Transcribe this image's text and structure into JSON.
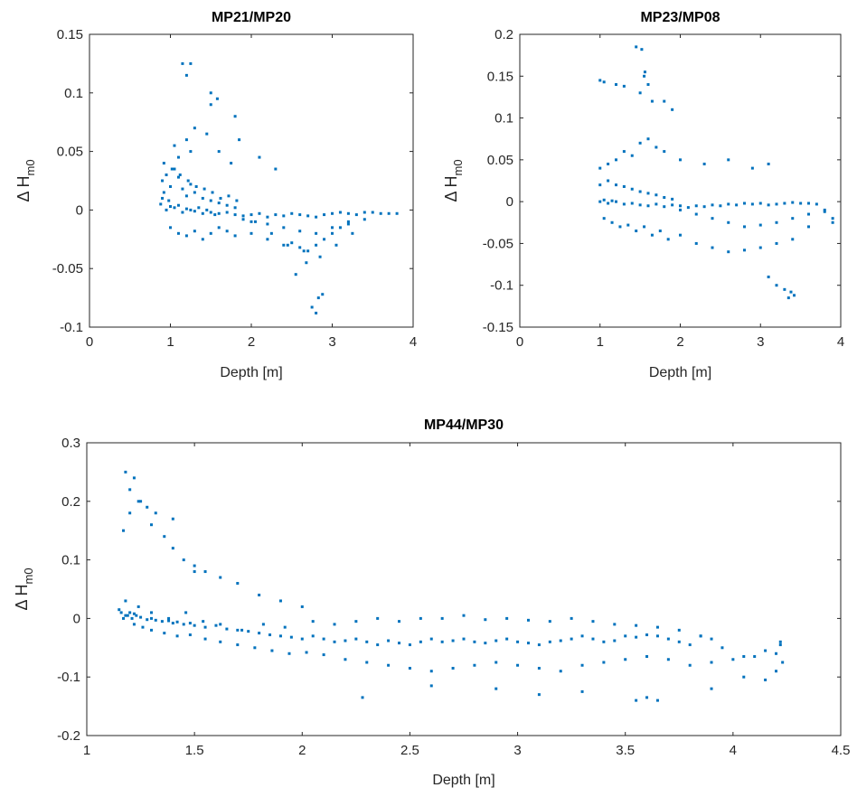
{
  "chart_data": [
    {
      "type": "scatter",
      "title": "MP21/MP20",
      "xlabel": "Depth [m]",
      "ylabel": {
        "main": "Δ H",
        "sub": "m0"
      },
      "xlim": [
        0,
        4
      ],
      "ylim": [
        -0.1,
        0.15
      ],
      "xticks": [
        "0",
        "1",
        "2",
        "3",
        "4"
      ],
      "yticks": [
        "-0.1",
        "-0.05",
        "0",
        "0.05",
        "0.1",
        "0.15"
      ],
      "grid": false,
      "marker_color": "#0072BD",
      "series": [
        {
          "x": [
            0.88,
            0.9,
            0.92,
            0.95,
            0.98,
            1.0,
            1.05,
            1.1,
            1.15,
            1.2,
            1.25,
            1.3,
            1.35,
            1.4,
            1.45,
            1.5,
            1.55,
            1.6,
            1.7,
            1.8,
            1.9,
            2.0,
            2.1,
            2.2,
            2.3,
            2.4,
            2.5,
            2.6,
            2.7,
            2.8,
            2.9,
            3.0,
            3.1,
            3.2,
            3.3,
            3.4,
            3.5,
            3.6,
            3.7,
            3.8,
            0.9,
            0.95,
            1.0,
            1.05,
            1.1,
            1.15,
            1.2,
            1.25,
            1.3,
            1.4,
            1.5,
            1.6,
            1.7,
            1.8,
            1.9,
            2.0,
            2.2,
            2.4,
            2.6,
            2.8,
            3.0,
            3.2,
            3.4,
            1.0,
            1.1,
            1.2,
            1.3,
            1.4,
            1.5,
            1.6,
            1.7,
            1.8,
            2.0,
            2.2,
            2.4,
            2.5,
            2.6,
            2.7,
            2.8,
            2.9,
            3.0,
            3.1,
            3.2,
            1.05,
            1.1,
            1.2,
            1.25,
            1.3,
            1.45,
            1.5,
            1.6,
            1.75,
            1.85,
            2.1,
            2.3,
            1.15,
            1.2,
            1.25,
            1.5,
            1.58,
            1.8,
            0.92,
            1.02,
            1.12,
            1.22,
            1.32,
            1.42,
            1.52,
            1.62,
            1.72,
            1.82,
            2.05,
            2.25,
            2.45,
            2.65,
            2.85,
            3.05,
            3.25,
            2.55,
            2.68,
            2.75,
            2.8,
            2.83,
            2.88
          ],
          "y": [
            0.005,
            0.01,
            0.015,
            0.0,
            0.008,
            0.003,
            0.002,
            0.004,
            -0.002,
            0.001,
            0.0,
            -0.001,
            0.002,
            -0.003,
            0.0,
            -0.002,
            -0.004,
            -0.003,
            -0.002,
            -0.004,
            -0.005,
            -0.004,
            -0.003,
            -0.006,
            -0.004,
            -0.005,
            -0.003,
            -0.004,
            -0.005,
            -0.006,
            -0.004,
            -0.003,
            -0.002,
            -0.003,
            -0.004,
            -0.002,
            -0.002,
            -0.003,
            -0.003,
            -0.003,
            0.025,
            0.03,
            0.02,
            0.035,
            0.028,
            0.018,
            0.012,
            0.022,
            0.015,
            0.01,
            0.008,
            0.006,
            0.004,
            0.002,
            -0.008,
            -0.01,
            -0.012,
            -0.015,
            -0.018,
            -0.02,
            -0.015,
            -0.01,
            -0.008,
            -0.015,
            -0.02,
            -0.022,
            -0.018,
            -0.025,
            -0.02,
            -0.015,
            -0.018,
            -0.022,
            -0.02,
            -0.025,
            -0.03,
            -0.028,
            -0.032,
            -0.035,
            -0.03,
            -0.025,
            -0.02,
            -0.015,
            -0.012,
            0.055,
            0.045,
            0.06,
            0.05,
            0.07,
            0.065,
            0.09,
            0.05,
            0.04,
            0.06,
            0.045,
            0.035,
            0.125,
            0.115,
            0.125,
            0.1,
            0.095,
            0.08,
            0.04,
            0.035,
            0.03,
            0.025,
            0.02,
            0.018,
            0.015,
            0.01,
            0.012,
            0.008,
            -0.01,
            -0.02,
            -0.03,
            -0.035,
            -0.04,
            -0.03,
            -0.02,
            -0.055,
            -0.045,
            -0.083,
            -0.088,
            -0.075,
            -0.072
          ]
        }
      ]
    },
    {
      "type": "scatter",
      "title": "MP23/MP08",
      "xlabel": "Depth [m]",
      "ylabel": {
        "main": "Δ H",
        "sub": "m0"
      },
      "xlim": [
        0,
        4
      ],
      "ylim": [
        -0.15,
        0.2
      ],
      "xticks": [
        "0",
        "1",
        "2",
        "3",
        "4"
      ],
      "yticks": [
        "-0.15",
        "-0.1",
        "-0.05",
        "0",
        "0.05",
        "0.1",
        "0.15",
        "0.2"
      ],
      "grid": false,
      "marker_color": "#0072BD",
      "series": [
        {
          "x": [
            1.0,
            1.05,
            1.1,
            1.15,
            1.2,
            1.3,
            1.4,
            1.5,
            1.6,
            1.7,
            1.8,
            1.9,
            2.0,
            2.1,
            2.2,
            2.3,
            2.4,
            2.5,
            2.6,
            2.7,
            2.8,
            2.9,
            3.0,
            3.1,
            3.2,
            3.3,
            3.4,
            3.5,
            3.6,
            3.7,
            3.8,
            3.9,
            1.0,
            1.1,
            1.2,
            1.3,
            1.4,
            1.5,
            1.6,
            1.7,
            1.8,
            1.9,
            2.0,
            2.2,
            2.4,
            2.6,
            2.8,
            3.0,
            3.2,
            3.4,
            3.6,
            3.8,
            1.05,
            1.15,
            1.25,
            1.35,
            1.45,
            1.55,
            1.65,
            1.75,
            1.85,
            2.0,
            2.2,
            2.4,
            2.6,
            2.8,
            3.0,
            3.2,
            3.4,
            3.6,
            3.9,
            1.0,
            1.1,
            1.2,
            1.3,
            1.4,
            1.5,
            1.6,
            1.7,
            1.8,
            2.0,
            2.3,
            2.6,
            2.9,
            3.1,
            1.0,
            1.05,
            1.2,
            1.3,
            1.5,
            1.55,
            1.6,
            1.65,
            1.8,
            1.9,
            1.45,
            1.52,
            1.56,
            3.1,
            3.2,
            3.3,
            3.35,
            3.38,
            3.42
          ],
          "y": [
            0.0,
            0.002,
            -0.002,
            0.001,
            0.0,
            -0.003,
            -0.002,
            -0.004,
            -0.005,
            -0.003,
            -0.006,
            -0.004,
            -0.005,
            -0.007,
            -0.005,
            -0.006,
            -0.004,
            -0.005,
            -0.003,
            -0.004,
            -0.002,
            -0.003,
            -0.002,
            -0.004,
            -0.003,
            -0.002,
            -0.001,
            -0.002,
            -0.002,
            -0.003,
            -0.01,
            -0.02,
            0.02,
            0.025,
            0.02,
            0.018,
            0.015,
            0.012,
            0.01,
            0.008,
            0.005,
            0.003,
            -0.01,
            -0.015,
            -0.02,
            -0.025,
            -0.03,
            -0.028,
            -0.025,
            -0.02,
            -0.015,
            -0.012,
            -0.02,
            -0.025,
            -0.03,
            -0.028,
            -0.035,
            -0.03,
            -0.04,
            -0.035,
            -0.045,
            -0.04,
            -0.05,
            -0.055,
            -0.06,
            -0.058,
            -0.055,
            -0.05,
            -0.045,
            -0.03,
            -0.025,
            0.04,
            0.045,
            0.05,
            0.06,
            0.055,
            0.07,
            0.075,
            0.065,
            0.06,
            0.05,
            0.045,
            0.05,
            0.04,
            0.045,
            0.145,
            0.143,
            0.14,
            0.138,
            0.13,
            0.15,
            0.14,
            0.12,
            0.12,
            0.11,
            0.185,
            0.182,
            0.155,
            -0.09,
            -0.1,
            -0.105,
            -0.115,
            -0.108,
            -0.112
          ]
        }
      ]
    },
    {
      "type": "scatter",
      "title": "MP44/MP30",
      "xlabel": "Depth [m]",
      "ylabel": {
        "main": "Δ H",
        "sub": "m0"
      },
      "xlim": [
        1,
        4.5
      ],
      "ylim": [
        -0.2,
        0.3
      ],
      "xticks": [
        "1",
        "1.5",
        "2",
        "2.5",
        "3",
        "3.5",
        "4",
        "4.5"
      ],
      "yticks": [
        "-0.2",
        "-0.1",
        "0",
        "0.1",
        "0.2",
        "0.3"
      ],
      "grid": false,
      "marker_color": "#0072BD",
      "series": [
        {
          "x": [
            1.15,
            1.17,
            1.18,
            1.2,
            1.21,
            1.22,
            1.23,
            1.25,
            1.28,
            1.3,
            1.32,
            1.35,
            1.38,
            1.4,
            1.42,
            1.45,
            1.48,
            1.5,
            1.55,
            1.6,
            1.65,
            1.7,
            1.75,
            1.8,
            1.85,
            1.9,
            1.95,
            2.0,
            2.05,
            2.1,
            2.15,
            2.2,
            2.25,
            2.3,
            2.35,
            2.4,
            2.45,
            2.5,
            2.55,
            2.6,
            2.65,
            2.7,
            2.75,
            2.8,
            2.85,
            2.9,
            2.95,
            3.0,
            3.05,
            3.1,
            3.15,
            3.2,
            3.25,
            3.3,
            3.35,
            3.4,
            3.45,
            3.5,
            3.55,
            3.6,
            3.65,
            3.7,
            3.75,
            3.8,
            3.85,
            3.9,
            1.16,
            1.19,
            1.22,
            1.26,
            1.3,
            1.36,
            1.42,
            1.48,
            1.55,
            1.62,
            1.7,
            1.78,
            1.86,
            1.94,
            2.02,
            2.1,
            2.2,
            2.3,
            2.4,
            2.5,
            2.6,
            2.7,
            2.8,
            2.9,
            3.0,
            3.1,
            3.2,
            3.3,
            3.4,
            3.5,
            3.6,
            3.7,
            3.8,
            3.9,
            4.0,
            4.1,
            4.2,
            1.18,
            1.24,
            1.3,
            1.38,
            1.46,
            1.54,
            1.62,
            1.72,
            1.82,
            1.92,
            2.05,
            2.15,
            2.25,
            2.35,
            2.45,
            2.55,
            2.65,
            2.75,
            2.85,
            2.95,
            3.05,
            3.15,
            3.25,
            3.35,
            3.45,
            3.55,
            3.65,
            3.75,
            3.85,
            3.95,
            4.05,
            4.15,
            4.22,
            1.17,
            1.2,
            1.24,
            1.28,
            1.32,
            1.36,
            1.4,
            1.45,
            1.5,
            1.55,
            1.62,
            1.7,
            1.8,
            1.9,
            2.0,
            1.18,
            1.2,
            1.22,
            1.25,
            1.3,
            1.4,
            1.5,
            2.28,
            2.6,
            2.9,
            3.1,
            3.3,
            3.55,
            3.6,
            3.65,
            3.9,
            4.05,
            4.15,
            4.2,
            4.23,
            4.22
          ],
          "y": [
            0.015,
            0.0,
            0.005,
            0.01,
            0.0,
            0.008,
            0.005,
            0.002,
            -0.002,
            0.0,
            -0.003,
            -0.005,
            -0.004,
            -0.008,
            -0.006,
            -0.01,
            -0.008,
            -0.012,
            -0.015,
            -0.012,
            -0.018,
            -0.02,
            -0.022,
            -0.025,
            -0.028,
            -0.03,
            -0.032,
            -0.035,
            -0.03,
            -0.035,
            -0.04,
            -0.038,
            -0.035,
            -0.04,
            -0.045,
            -0.038,
            -0.042,
            -0.045,
            -0.04,
            -0.035,
            -0.04,
            -0.038,
            -0.035,
            -0.04,
            -0.042,
            -0.038,
            -0.035,
            -0.04,
            -0.042,
            -0.045,
            -0.04,
            -0.038,
            -0.035,
            -0.03,
            -0.035,
            -0.04,
            -0.038,
            -0.03,
            -0.032,
            -0.028,
            -0.03,
            -0.035,
            -0.04,
            -0.045,
            -0.03,
            -0.035,
            0.01,
            0.005,
            -0.01,
            -0.015,
            -0.02,
            -0.025,
            -0.03,
            -0.028,
            -0.035,
            -0.04,
            -0.045,
            -0.05,
            -0.055,
            -0.06,
            -0.058,
            -0.062,
            -0.07,
            -0.075,
            -0.08,
            -0.085,
            -0.09,
            -0.085,
            -0.08,
            -0.075,
            -0.08,
            -0.085,
            -0.09,
            -0.08,
            -0.075,
            -0.07,
            -0.065,
            -0.07,
            -0.08,
            -0.075,
            -0.07,
            -0.065,
            -0.06,
            0.03,
            0.02,
            0.01,
            0.0,
            0.01,
            -0.005,
            -0.01,
            -0.02,
            -0.01,
            -0.015,
            -0.005,
            -0.01,
            -0.005,
            0.0,
            -0.005,
            0.0,
            0.0,
            0.005,
            -0.002,
            0.0,
            -0.003,
            -0.005,
            0.0,
            -0.005,
            -0.01,
            -0.012,
            -0.015,
            -0.02,
            -0.03,
            -0.05,
            -0.065,
            -0.055,
            -0.04,
            0.15,
            0.18,
            0.2,
            0.19,
            0.18,
            0.14,
            0.12,
            0.1,
            0.09,
            0.08,
            0.07,
            0.06,
            0.04,
            0.03,
            0.02,
            0.25,
            0.22,
            0.24,
            0.2,
            0.16,
            0.17,
            0.08,
            -0.135,
            -0.115,
            -0.12,
            -0.13,
            -0.125,
            -0.14,
            -0.135,
            -0.14,
            -0.12,
            -0.1,
            -0.105,
            -0.09,
            -0.075,
            -0.045
          ]
        }
      ]
    }
  ]
}
